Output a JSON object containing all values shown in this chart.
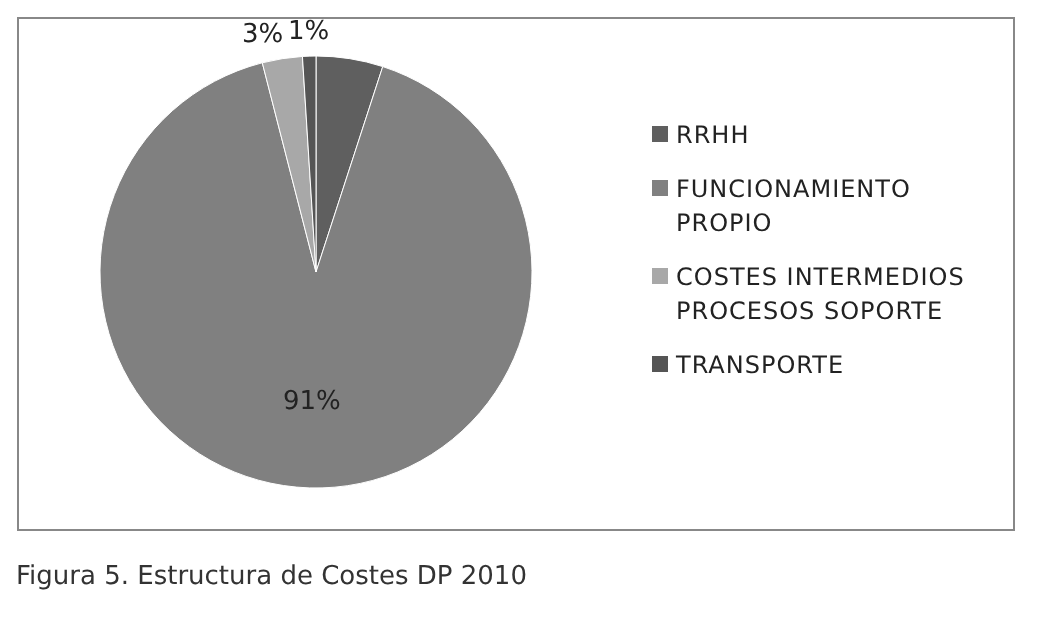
{
  "chart_data": {
    "type": "pie",
    "categories": [
      "RRHH",
      "FUNCIONAMIENTO PROPIO",
      "COSTES INTERMEDIOS PROCESOS SOPORTE",
      "TRANSPORTE"
    ],
    "values": [
      5,
      91,
      3,
      1
    ],
    "colors": [
      "#5f5f5f",
      "#808080",
      "#a8a8a8",
      "#555555"
    ],
    "value_labels": [
      null,
      "91%",
      "3%",
      "1%"
    ],
    "legend": "right",
    "annotations": [
      "Figura 5. Estructura de Costes DP 2010"
    ]
  }
}
